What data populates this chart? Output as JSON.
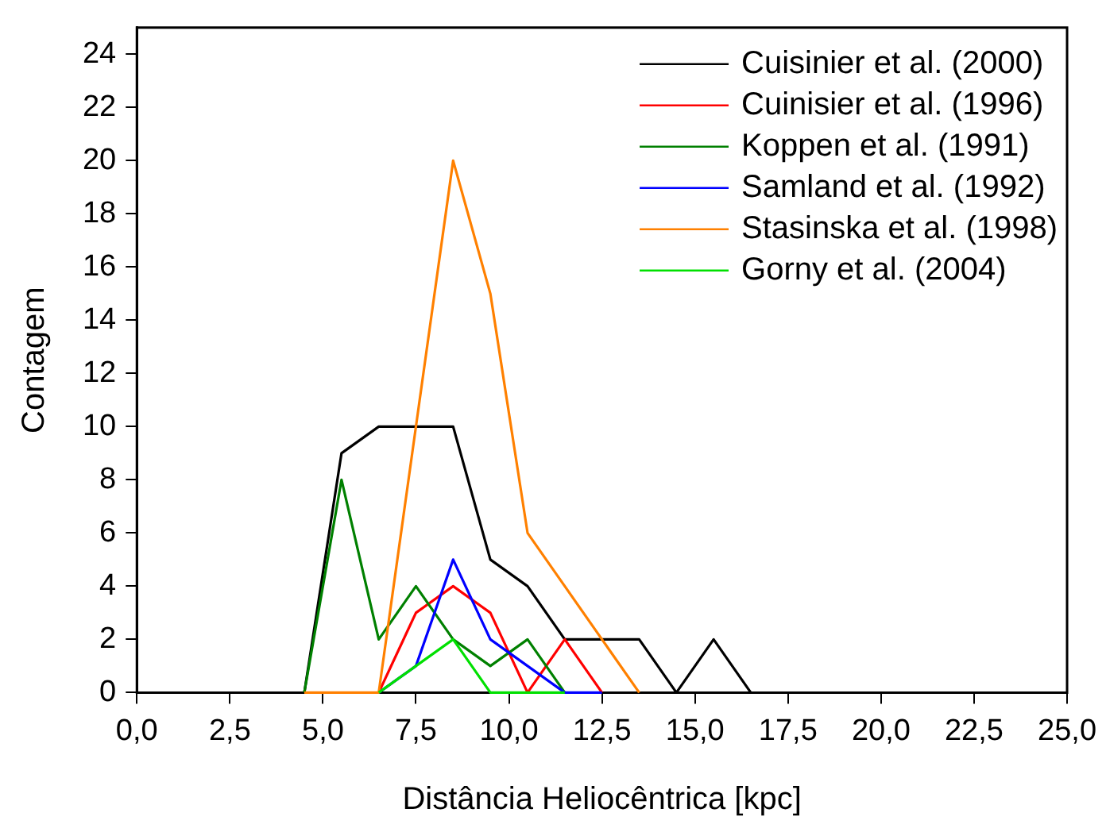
{
  "chart_data": {
    "type": "line",
    "xlabel": "Distância Heliocêntrica [kpc]",
    "ylabel": "Contagem",
    "x": [
      4.5,
      5.5,
      6.5,
      7.5,
      8.5,
      9.5,
      10.5,
      11.5,
      12.5,
      13.5,
      14.5,
      15.5,
      16.5
    ],
    "series": [
      {
        "name": "Cuisinier et al. (2000)",
        "color": "#000000",
        "values": [
          0,
          9,
          10,
          10,
          10,
          5,
          4,
          2,
          2,
          2,
          0,
          2,
          0
        ]
      },
      {
        "name": "Cuinisier et al. (1996)",
        "color": "#ff0000",
        "values": [
          null,
          null,
          0,
          3,
          4,
          3,
          0,
          2,
          0,
          null,
          null,
          null,
          null
        ]
      },
      {
        "name": "Koppen et al. (1991)",
        "color": "#008000",
        "values": [
          0,
          8,
          2,
          4,
          2,
          1,
          2,
          0,
          null,
          null,
          null,
          null,
          null
        ]
      },
      {
        "name": "Samland et al. (1992)",
        "color": "#0000ff",
        "values": [
          null,
          null,
          0,
          1,
          5,
          2,
          1,
          0,
          0,
          null,
          null,
          null,
          null
        ]
      },
      {
        "name": "Stasinska et al. (1998)",
        "color": "#ff8000",
        "values": [
          0,
          0,
          0,
          10,
          20,
          15,
          6,
          4,
          2,
          0,
          null,
          null,
          null
        ]
      },
      {
        "name": "Gorny et al. (2004)",
        "color": "#00e000",
        "values": [
          null,
          null,
          0,
          1,
          2,
          0,
          0,
          0,
          null,
          null,
          null,
          null,
          null
        ]
      }
    ],
    "xlim": [
      0,
      25
    ],
    "xticks": [
      {
        "value": 0,
        "label": "0,0"
      },
      {
        "value": 2.5,
        "label": "2,5"
      },
      {
        "value": 5,
        "label": "5,0"
      },
      {
        "value": 7.5,
        "label": "7,5"
      },
      {
        "value": 10,
        "label": "10,0"
      },
      {
        "value": 12.5,
        "label": "12,5"
      },
      {
        "value": 15,
        "label": "15,0"
      },
      {
        "value": 17.5,
        "label": "17,5"
      },
      {
        "value": 20,
        "label": "20,0"
      },
      {
        "value": 22.5,
        "label": "22,5"
      },
      {
        "value": 25,
        "label": "25,0"
      }
    ],
    "ylim": [
      0,
      25
    ],
    "yticks": [
      0,
      2,
      4,
      6,
      8,
      10,
      12,
      14,
      16,
      18,
      20,
      22,
      24
    ],
    "legend": "top right",
    "grid": false,
    "marker": "none",
    "line_style": "solid"
  }
}
